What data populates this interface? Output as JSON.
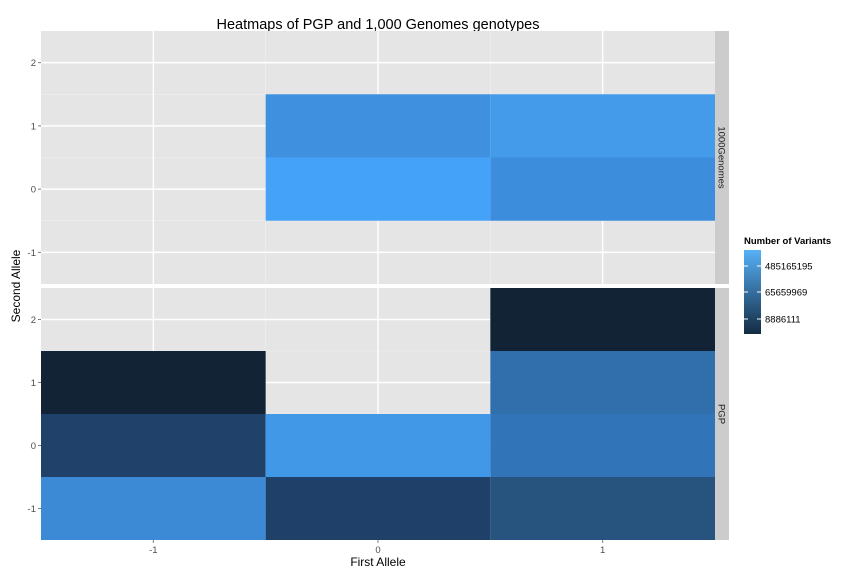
{
  "chart_data": {
    "type": "heatmap",
    "title": "Heatmaps of PGP and 1,000 Genomes genotypes",
    "xlabel": "First Allele",
    "ylabel": "Second Allele",
    "x_ticks": [
      "-1",
      "0",
      "1"
    ],
    "y_ticks": [
      "-1",
      "0",
      "1",
      "2"
    ],
    "xlim": [
      -1.5,
      1.5
    ],
    "grid": true,
    "facets": [
      {
        "label": "1000Genomes",
        "ylim": [
          -1.5,
          2.5
        ],
        "cells": [
          {
            "x": 0,
            "y": 0,
            "color": "#45a2f9"
          },
          {
            "x": 0,
            "y": 1,
            "color": "#3f91e0"
          },
          {
            "x": 1,
            "y": 0,
            "color": "#3c8ddc"
          },
          {
            "x": 1,
            "y": 1,
            "color": "#449be9"
          }
        ]
      },
      {
        "label": "PGP",
        "ylim": [
          -1.5,
          2.5
        ],
        "cells": [
          {
            "x": -1,
            "y": -1,
            "color": "#3c8ad6"
          },
          {
            "x": -1,
            "y": 0,
            "color": "#20426a"
          },
          {
            "x": -1,
            "y": 1,
            "color": "#132336"
          },
          {
            "x": 0,
            "y": -1,
            "color": "#1f4068"
          },
          {
            "x": 0,
            "y": 0,
            "color": "#4198e6"
          },
          {
            "x": 1,
            "y": -1,
            "color": "#27537f"
          },
          {
            "x": 1,
            "y": 0,
            "color": "#3174b7"
          },
          {
            "x": 1,
            "y": 1,
            "color": "#316eac"
          },
          {
            "x": 1,
            "y": 2,
            "color": "#132336"
          }
        ]
      }
    ],
    "legend": {
      "title": "Number of Variants",
      "placement": "right",
      "labels": [
        "485165195",
        "65659969",
        "8886111"
      ],
      "gradient": [
        "#132b43",
        "#56b1f7"
      ]
    }
  }
}
